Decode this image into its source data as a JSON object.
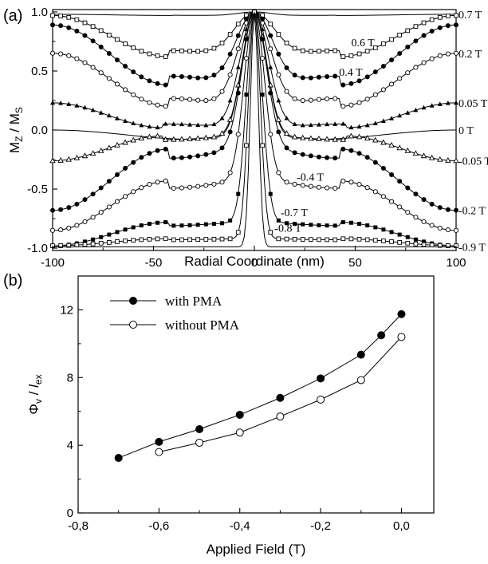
{
  "chart_data": [
    {
      "panel": "(a)",
      "type": "line",
      "ylabel": "M",
      "ylabel_sub": "Z",
      "ylabel_mid": " / M",
      "ylabel_sub2": "S",
      "xlabel": "Radial Coordinate (nm)",
      "xlim": [
        -100,
        100
      ],
      "ylim": [
        -1.02,
        1.02
      ],
      "xticks": [
        -100,
        -50,
        0,
        50,
        100
      ],
      "xtick_labels": [
        "-100",
        "-50",
        "0",
        "50",
        "100"
      ],
      "yticks": [
        -1.0,
        -0.5,
        0.0,
        0.5,
        1.0
      ],
      "ytick_labels": [
        "-1.0",
        "-0.5",
        "0.0",
        "0.5",
        "1.0"
      ],
      "grid": false,
      "series": [
        {
          "name": "0.7 T",
          "marker": "none",
          "edge": 0.98,
          "plateau_min": 0.97,
          "plateau_r": 40,
          "core_halfwidth": 8
        },
        {
          "name": "0.6 T",
          "marker": "open-square",
          "edge": 0.97,
          "plateau_min": 0.62,
          "plateau_r": 42,
          "core_halfwidth": 10
        },
        {
          "name": "0.4 T",
          "marker": "filled-circle",
          "edge": 0.89,
          "plateau_min": 0.38,
          "plateau_r": 42,
          "core_halfwidth": 9
        },
        {
          "name": "0.2 T",
          "marker": "open-circle",
          "edge": 0.65,
          "plateau_min": 0.2,
          "plateau_r": 42,
          "core_halfwidth": 8
        },
        {
          "name": "0.05 T",
          "marker": "filled-triangle",
          "edge": 0.23,
          "plateau_min": 0.02,
          "plateau_r": 45,
          "core_halfwidth": 7
        },
        {
          "name": "0 T",
          "marker": "none",
          "edge": 0.0,
          "plateau_min": -0.08,
          "plateau_r": 28,
          "core_halfwidth": 6
        },
        {
          "name": "-0.05 T",
          "marker": "open-triangle",
          "edge": -0.26,
          "plateau_min": -0.05,
          "plateau_r": 45,
          "core_halfwidth": 6
        },
        {
          "name": "-0.4 T",
          "marker": "filled-circle",
          "edge": -0.68,
          "plateau_min": -0.16,
          "plateau_r": 42,
          "core_halfwidth": 6
        },
        {
          "name": "-0.2 T",
          "marker": "open-circle",
          "edge": -0.85,
          "plateau_min": -0.43,
          "plateau_r": 42,
          "core_halfwidth": 5
        },
        {
          "name": "-0.7 T",
          "marker": "filled-square",
          "edge": -0.98,
          "plateau_min": -0.78,
          "plateau_r": 42,
          "core_halfwidth": 4
        },
        {
          "name": "-0.8 T",
          "marker": "open-square",
          "edge": -0.98,
          "plateau_min": -0.92,
          "plateau_r": 42,
          "core_halfwidth": 3
        },
        {
          "name": "-0.9 T",
          "marker": "none",
          "edge": -0.99,
          "plateau_min": -0.99,
          "plateau_r": 42,
          "core_halfwidth": 2
        }
      ],
      "annotations": [
        {
          "text": "0.6 T",
          "x": 48,
          "y": 0.71
        },
        {
          "text": "0.4 T",
          "x": 42,
          "y": 0.46
        },
        {
          "text": "-0.4 T",
          "x": 21,
          "y": -0.43
        },
        {
          "text": "-0.7 T",
          "x": 13,
          "y": -0.73
        },
        {
          "text": "-0.8 T",
          "x": 10,
          "y": -0.86
        }
      ],
      "right_labels": [
        "0.7 T",
        "0.2 T",
        "0.05 T",
        "0 T",
        "-0.05 T",
        "-0.2 T",
        "-0.9 T"
      ]
    },
    {
      "panel": "(b)",
      "type": "line",
      "ylabel": "Φ",
      "ylabel_sub": "v",
      "ylabel_mid": " / ",
      "ylabel_ital": "l",
      "ylabel_sub2": "ex",
      "xlabel": "Applied Field (T)",
      "xlim": [
        -0.8,
        0.08
      ],
      "ylim": [
        0,
        14
      ],
      "xticks": [
        -0.8,
        -0.6,
        -0.4,
        -0.2,
        0.0
      ],
      "xtick_labels": [
        "-0,8",
        "-0,6",
        "-0,4",
        "-0,2",
        "0,0"
      ],
      "yticks": [
        0,
        4,
        8,
        12
      ],
      "ytick_labels": [
        "0",
        "4",
        "8",
        "12"
      ],
      "grid": false,
      "legend_position": "top-left",
      "series": [
        {
          "name": "with PMA",
          "marker": "filled-circle",
          "x": [
            -0.7,
            -0.6,
            -0.5,
            -0.4,
            -0.3,
            -0.2,
            -0.1,
            -0.05,
            0.0
          ],
          "y": [
            3.25,
            4.2,
            4.95,
            5.8,
            6.8,
            7.95,
            9.35,
            10.5,
            11.75
          ]
        },
        {
          "name": "without PMA",
          "marker": "open-circle",
          "x": [
            -0.6,
            -0.5,
            -0.4,
            -0.3,
            -0.2,
            -0.1,
            0.0
          ],
          "y": [
            3.6,
            4.15,
            4.75,
            5.7,
            6.7,
            7.85,
            10.4
          ]
        }
      ]
    }
  ]
}
